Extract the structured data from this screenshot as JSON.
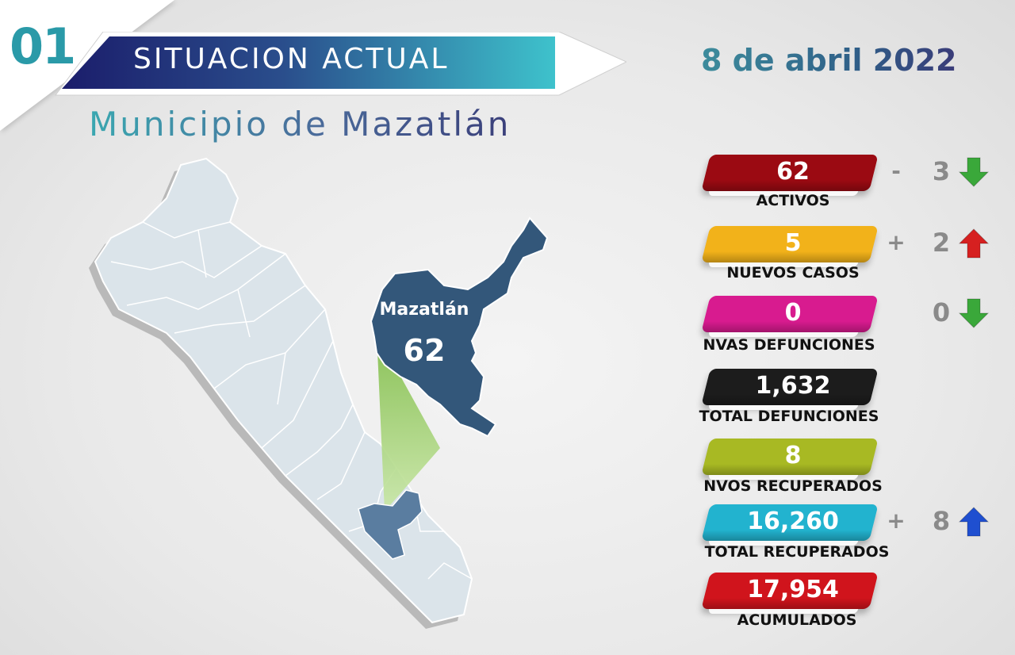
{
  "header": {
    "number": "01",
    "banner_title": "SITUACION ACTUAL",
    "subtitle": "Municipio de Mazatlán",
    "date": "8 de abril 2022"
  },
  "map": {
    "highlight_name": "Mazatlán",
    "highlight_value": "62",
    "highlight_color": "#33577a",
    "base_color": "#dbe4ea",
    "pointer_color": "#8dc766"
  },
  "stats": [
    {
      "value": "62",
      "label": "ACTIVOS",
      "color": "#9b0a12",
      "sign": "-",
      "change": "3",
      "arrow": "down-green-arrow-icon"
    },
    {
      "value": "5",
      "label": "NUEVOS CASOS",
      "color": "#f2b21a",
      "sign": "+",
      "change": "2",
      "arrow": "up-red-arrow-icon"
    },
    {
      "value": "0",
      "label": "NVAS DEFUNCIONES",
      "color": "#d81b8f",
      "sign": "",
      "change": "0",
      "arrow": "down-green-arrow-icon"
    },
    {
      "value": "1,632",
      "label": "TOTAL DEFUNCIONES",
      "color": "#1c1c1c"
    },
    {
      "value": "8",
      "label": "NVOS RECUPERADOS",
      "color": "#a8b923"
    },
    {
      "value": "16,260",
      "label": "TOTAL RECUPERADOS",
      "color": "#22b3cf",
      "sign": "+",
      "change": "8",
      "arrow": "up-blue-arrow-icon"
    },
    {
      "value": "17,954",
      "label": "ACUMULADOS",
      "color": "#d0141c"
    }
  ]
}
